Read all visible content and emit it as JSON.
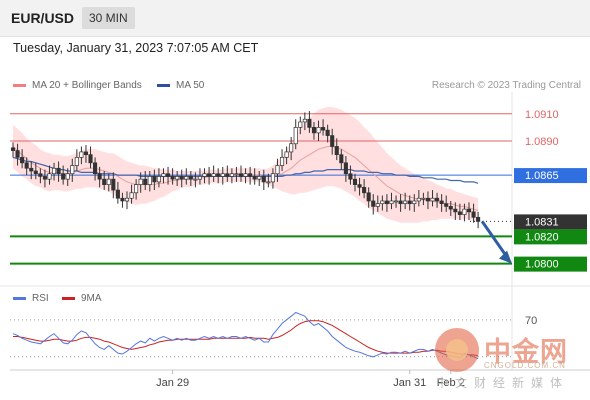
{
  "header": {
    "symbol": "EUR/USD",
    "timeframe": "30 MIN"
  },
  "datetime": "Tuesday, January 31, 2023 7:07:05 AM CET",
  "legend": {
    "ma20_bb": "MA 20 + Bollinger Bands",
    "ma50": "MA 50",
    "copyright": "Research © 2023 Trading Central"
  },
  "rsi_legend": {
    "rsi": "RSI",
    "ma9": "9MA"
  },
  "watermark": {
    "brand": "中金网",
    "url": "CNGOLD.COM.CN",
    "tagline": "中文财经新媒体"
  },
  "colors": {
    "resistance": "#e06666",
    "support": "#118811",
    "ma50": "#4466aa",
    "bollinger_fill": "#ffd9d9",
    "ma20": "#e8a0a0",
    "pivot": "#2f6fe0",
    "current": "#333333",
    "rsi": "#5577dd",
    "rsi_ma": "#cc2222",
    "candle_up": "#ffffff",
    "candle_down": "#333333"
  },
  "chart_data": {
    "type": "candlestick",
    "price_range": [
      1.07865,
      1.0926
    ],
    "levels": [
      {
        "value": 1.091,
        "label": "1.0910",
        "kind": "resistance"
      },
      {
        "value": 1.089,
        "label": "1.0890",
        "kind": "resistance"
      },
      {
        "value": 1.0865,
        "label": "1.0865",
        "kind": "pivot"
      },
      {
        "value": 1.0831,
        "label": "1.0831",
        "kind": "current"
      },
      {
        "value": 1.082,
        "label": "1.0820",
        "kind": "support"
      },
      {
        "value": 1.08,
        "label": "1.0800",
        "kind": "support"
      }
    ],
    "x_labels": [
      {
        "bar": 35,
        "label": "Jan 29"
      },
      {
        "bar": 87,
        "label": "Jan 31"
      },
      {
        "bar": 96,
        "label": "Feb 2"
      }
    ],
    "close": [
      1.0883,
      1.0878,
      1.0874,
      1.087,
      1.0868,
      1.0866,
      1.0864,
      1.0862,
      1.0866,
      1.087,
      1.0866,
      1.0862,
      1.0866,
      1.0872,
      1.0878,
      1.0882,
      1.088,
      1.0874,
      1.0866,
      1.0862,
      1.0858,
      1.0862,
      1.0854,
      1.0848,
      1.0846,
      1.0848,
      1.0852,
      1.0858,
      1.0862,
      1.0858,
      1.0864,
      1.086,
      1.0864,
      1.0866,
      1.0864,
      1.0862,
      1.0864,
      1.0862,
      1.0864,
      1.0862,
      1.0862,
      1.0864,
      1.0866,
      1.0864,
      1.0866,
      1.0864,
      1.0866,
      1.0864,
      1.0866,
      1.0866,
      1.0864,
      1.0866,
      1.0864,
      1.0862,
      1.0864,
      1.086,
      1.086,
      1.0866,
      1.0872,
      1.0878,
      1.0882,
      1.0888,
      1.09,
      1.0904,
      1.0906,
      1.09,
      1.0896,
      1.09,
      1.0898,
      1.0894,
      1.0886,
      1.088,
      1.0874,
      1.0866,
      1.0862,
      1.0858,
      1.0856,
      1.0852,
      1.0846,
      1.0842,
      1.0844,
      1.0846,
      1.0844,
      1.0846,
      1.0846,
      1.0844,
      1.0846,
      1.0844,
      1.0846,
      1.0848,
      1.0848,
      1.0846,
      1.0848,
      1.0846,
      1.0844,
      1.0842,
      1.084,
      1.0838,
      1.0836,
      1.084,
      1.0838,
      1.0834,
      1.0831
    ],
    "ma20": [
      1.0886,
      1.0883,
      1.088,
      1.0877,
      1.0874,
      1.0872,
      1.087,
      1.0868,
      1.0867,
      1.0867,
      1.0867,
      1.0866,
      1.0866,
      1.0867,
      1.0868,
      1.0869,
      1.087,
      1.087,
      1.087,
      1.0869,
      1.0868,
      1.0867,
      1.0866,
      1.0864,
      1.0862,
      1.086,
      1.0859,
      1.0858,
      1.0858,
      1.0858,
      1.0858,
      1.0858,
      1.0859,
      1.0859,
      1.086,
      1.0861,
      1.0861,
      1.0862,
      1.0862,
      1.0862,
      1.0863,
      1.0863,
      1.0863,
      1.0864,
      1.0864,
      1.0864,
      1.0864,
      1.0865,
      1.0865,
      1.0865,
      1.0865,
      1.0865,
      1.0865,
      1.0865,
      1.0865,
      1.0864,
      1.0864,
      1.0864,
      1.0865,
      1.0866,
      1.0868,
      1.087,
      1.0873,
      1.0876,
      1.0878,
      1.088,
      1.0882,
      1.0884,
      1.0885,
      1.0886,
      1.0886,
      1.0885,
      1.0884,
      1.0882,
      1.088,
      1.0878,
      1.0875,
      1.0872,
      1.0869,
      1.0866,
      1.0863,
      1.086,
      1.0857,
      1.0855,
      1.0853,
      1.0851,
      1.085,
      1.0849,
      1.0848,
      1.0847,
      1.0847,
      1.0846,
      1.0846,
      1.0845,
      1.0845,
      1.0844,
      1.0844,
      1.0843,
      1.0842,
      1.0842,
      1.0841,
      1.084,
      1.0839
    ],
    "ma50": [
      1.0878,
      1.0877,
      1.0876,
      1.0875,
      1.0875,
      1.0874,
      1.0873,
      1.0872,
      1.0871,
      1.087,
      1.0869,
      1.0869,
      1.0868,
      1.0868,
      1.0868,
      1.0867,
      1.0867,
      1.0867,
      1.0867,
      1.0866,
      1.0866,
      1.0866,
      1.0866,
      1.0865,
      1.0865,
      1.0865,
      1.0865,
      1.0865,
      1.0864,
      1.0864,
      1.0864,
      1.0864,
      1.0864,
      1.0864,
      1.0864,
      1.0864,
      1.0864,
      1.0864,
      1.0864,
      1.0864,
      1.0864,
      1.0864,
      1.0864,
      1.0864,
      1.0864,
      1.0864,
      1.0864,
      1.0864,
      1.0864,
      1.0864,
      1.0864,
      1.0864,
      1.0864,
      1.0864,
      1.0864,
      1.0864,
      1.0864,
      1.0864,
      1.0864,
      1.0864,
      1.0865,
      1.0865,
      1.0866,
      1.0866,
      1.0867,
      1.0867,
      1.0868,
      1.0868,
      1.0868,
      1.0869,
      1.0869,
      1.0869,
      1.0869,
      1.0869,
      1.0869,
      1.0868,
      1.0868,
      1.0868,
      1.0867,
      1.0867,
      1.0867,
      1.0866,
      1.0866,
      1.0866,
      1.0865,
      1.0865,
      1.0865,
      1.0864,
      1.0864,
      1.0864,
      1.0863,
      1.0863,
      1.0863,
      1.0862,
      1.0862,
      1.0862,
      1.0861,
      1.0861,
      1.0861,
      1.086,
      1.086,
      1.086,
      1.0859
    ],
    "bb_width": [
      0.0016,
      0.0016,
      0.0016,
      0.0015,
      0.0015,
      0.0015,
      0.0014,
      0.0014,
      0.0014,
      0.0013,
      0.0013,
      0.0013,
      0.0013,
      0.0013,
      0.0013,
      0.0014,
      0.0014,
      0.0014,
      0.0014,
      0.0014,
      0.0014,
      0.0014,
      0.0015,
      0.0015,
      0.0015,
      0.0015,
      0.0015,
      0.0015,
      0.0014,
      0.0014,
      0.0013,
      0.0012,
      0.0011,
      0.001,
      0.0009,
      0.0008,
      0.0007,
      0.0006,
      0.0006,
      0.0006,
      0.0005,
      0.0005,
      0.0005,
      0.0005,
      0.0005,
      0.0005,
      0.0005,
      0.0005,
      0.0005,
      0.0005,
      0.0005,
      0.0005,
      0.0005,
      0.0005,
      0.0005,
      0.0005,
      0.0006,
      0.0008,
      0.001,
      0.0013,
      0.0016,
      0.0019,
      0.0022,
      0.0024,
      0.0026,
      0.0027,
      0.0028,
      0.0029,
      0.0029,
      0.0029,
      0.0029,
      0.0029,
      0.0029,
      0.0029,
      0.0029,
      0.0029,
      0.0029,
      0.0028,
      0.0028,
      0.0027,
      0.0026,
      0.0025,
      0.0024,
      0.0023,
      0.0022,
      0.0021,
      0.002,
      0.0019,
      0.0018,
      0.0017,
      0.0016,
      0.0015,
      0.0014,
      0.0013,
      0.0012,
      0.0011,
      0.0011,
      0.001,
      0.001,
      0.0009,
      0.0009,
      0.0009,
      0.0009
    ],
    "projection_to": 1.08,
    "rsi": {
      "level_label": "70",
      "levels": [
        70,
        30
      ],
      "range": [
        20,
        85
      ],
      "rsi": [
        55,
        53,
        50,
        48,
        46,
        45,
        44,
        48,
        52,
        55,
        50,
        45,
        44,
        48,
        54,
        58,
        56,
        50,
        44,
        40,
        38,
        42,
        38,
        34,
        33,
        36,
        40,
        44,
        47,
        45,
        50,
        47,
        50,
        52,
        50,
        48,
        50,
        48,
        50,
        48,
        48,
        50,
        52,
        50,
        52,
        50,
        52,
        50,
        52,
        52,
        50,
        52,
        50,
        48,
        50,
        46,
        46,
        54,
        60,
        66,
        70,
        74,
        78,
        76,
        74,
        68,
        64,
        66,
        62,
        58,
        52,
        48,
        44,
        40,
        38,
        36,
        35,
        33,
        31,
        30,
        32,
        34,
        33,
        35,
        35,
        34,
        36,
        34,
        36,
        38,
        38,
        36,
        38,
        36,
        34,
        32,
        31,
        30,
        29,
        34,
        32,
        30,
        28
      ],
      "ma": [
        52,
        52,
        51,
        50,
        49,
        48,
        47,
        47,
        48,
        49,
        49,
        48,
        47,
        47,
        48,
        50,
        51,
        51,
        50,
        49,
        47,
        46,
        44,
        42,
        40,
        39,
        38,
        39,
        40,
        41,
        43,
        44,
        46,
        47,
        48,
        48,
        49,
        49,
        49,
        49,
        49,
        49,
        49,
        49,
        50,
        50,
        50,
        50,
        50,
        50,
        50,
        50,
        51,
        50,
        50,
        50,
        49,
        50,
        51,
        53,
        56,
        59,
        63,
        66,
        68,
        69,
        69,
        69,
        68,
        66,
        64,
        61,
        58,
        55,
        52,
        49,
        46,
        43,
        40,
        38,
        36,
        35,
        34,
        34,
        34,
        34,
        34,
        34,
        35,
        35,
        36,
        36,
        37,
        37,
        36,
        36,
        35,
        34,
        33,
        33,
        32,
        32,
        31
      ]
    }
  }
}
